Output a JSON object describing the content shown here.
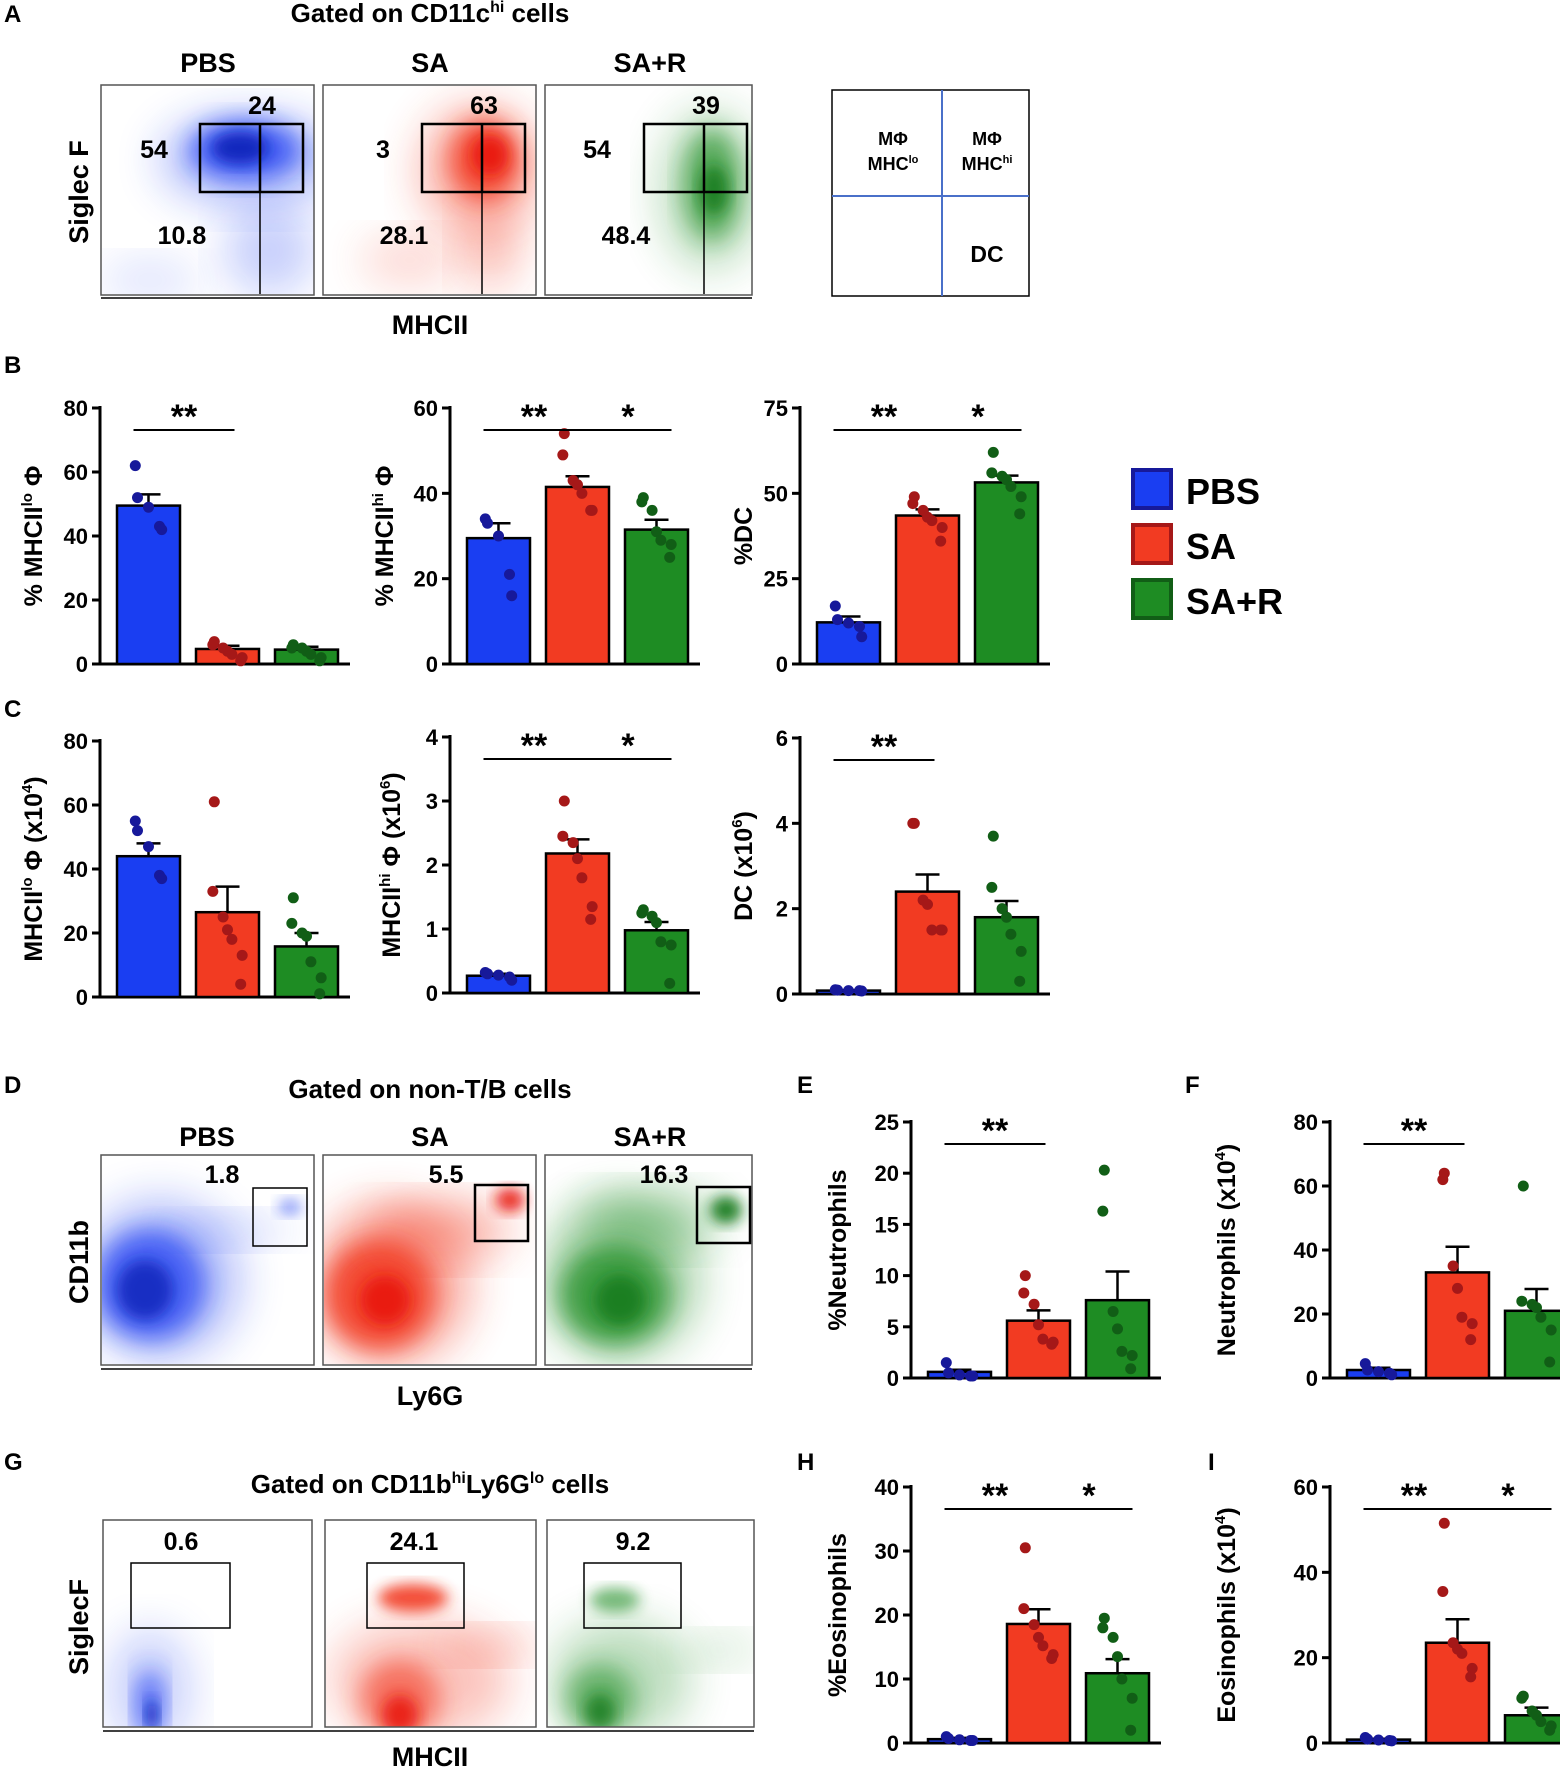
{
  "colors": {
    "pbs": "#1a3ef2",
    "sa": "#f23b22",
    "sar": "#1e8c23",
    "pbs_dot": "#17199a",
    "sa_dot": "#a51818",
    "sar_dot": "#115e16",
    "gate_line": "#4a70c9"
  },
  "panel_letters": [
    "A",
    "B",
    "C",
    "D",
    "E",
    "F",
    "G",
    "H",
    "I"
  ],
  "groups": [
    "PBS",
    "SA",
    "SA+R"
  ],
  "legend": {
    "items": [
      "PBS",
      "SA",
      "SA+R"
    ]
  },
  "panelA": {
    "title": "Gated on CD11c",
    "title_sup": "hi",
    "title_suffix": " cells",
    "ylabel": "Siglec F",
    "xlabel": "MHCII",
    "plots": [
      {
        "label": "PBS",
        "q_tl": "54",
        "q_tr": "24",
        "q_bl": "10.8"
      },
      {
        "label": "SA",
        "q_tl": "3",
        "q_tr": "63",
        "q_bl": "28.1"
      },
      {
        "label": "SA+R",
        "q_tl": "54",
        "q_tr": "39",
        "q_bl": "48.4"
      }
    ],
    "key": {
      "tl_line1": "MΦ",
      "tl_line2": "MHC",
      "tl_sup": "lo",
      "tr_line1": "MΦ",
      "tr_line2": "MHC",
      "tr_sup": "hi",
      "br": "DC"
    }
  },
  "panelD": {
    "title": "Gated on non-T/B cells",
    "ylabel": "CD11b",
    "xlabel": "Ly6G",
    "plots": [
      {
        "label": "PBS",
        "value": "1.8"
      },
      {
        "label": "SA",
        "value": "5.5"
      },
      {
        "label": "SA+R",
        "value": "16.3"
      }
    ]
  },
  "panelG": {
    "title_pre": "Gated on CD11b",
    "title_sup1": "hi",
    "title_mid": "Ly6G",
    "title_sup2": "lo",
    "title_post": " cells",
    "ylabel": "SiglecF",
    "xlabel": "MHCII",
    "plots": [
      {
        "value": "0.6"
      },
      {
        "value": "24.1"
      },
      {
        "value": "9.2"
      }
    ]
  },
  "chart_data": [
    {
      "id": "B1",
      "panel": "B",
      "type": "bar",
      "categories": [
        "PBS",
        "SA",
        "SA+R"
      ],
      "ylabel": "% MHCII",
      "ylabel_sup": "lo",
      "ylabel_post": " Φ",
      "ylim": [
        0,
        80
      ],
      "ticks": [
        0,
        20,
        40,
        60,
        80
      ],
      "means": [
        49.5,
        4.7,
        4.5
      ],
      "sem": [
        3.5,
        1.0,
        0.9
      ],
      "points": [
        [
          62,
          52,
          49,
          43,
          42
        ],
        [
          7,
          6,
          5,
          4,
          3,
          2,
          1
        ],
        [
          6,
          5,
          5,
          4,
          3,
          2,
          1
        ]
      ],
      "sig": [
        {
          "from": 0,
          "to": 1,
          "label": "**"
        }
      ]
    },
    {
      "id": "B2",
      "panel": "B",
      "type": "bar",
      "categories": [
        "PBS",
        "SA",
        "SA+R"
      ],
      "ylabel": "% MHCII",
      "ylabel_sup": "hi",
      "ylabel_post": " Φ",
      "ylim": [
        0,
        60
      ],
      "ticks": [
        0,
        20,
        40,
        60
      ],
      "means": [
        29.5,
        41.5,
        31.5
      ],
      "sem": [
        3.5,
        2.5,
        2.3
      ],
      "points": [
        [
          34,
          33,
          30,
          21,
          16
        ],
        [
          54,
          49,
          43,
          42,
          40,
          36,
          36
        ],
        [
          39,
          38,
          36,
          31,
          29,
          28,
          25
        ]
      ],
      "sig": [
        {
          "from": 0,
          "to": 1,
          "label": "**"
        },
        {
          "from": 1,
          "to": 2,
          "label": "*"
        }
      ]
    },
    {
      "id": "B3",
      "panel": "B",
      "type": "bar",
      "categories": [
        "PBS",
        "SA",
        "SA+R"
      ],
      "ylabel": "%DC",
      "ylim": [
        0,
        75
      ],
      "ticks": [
        0,
        25,
        50,
        75
      ],
      "means": [
        12.2,
        43.5,
        53.2
      ],
      "sem": [
        1.7,
        1.8,
        2.0
      ],
      "points": [
        [
          17,
          13,
          12,
          11,
          8
        ],
        [
          49,
          47,
          45,
          43,
          42,
          40,
          36
        ],
        [
          62,
          56,
          55,
          54,
          52,
          49,
          44
        ]
      ],
      "sig": [
        {
          "from": 0,
          "to": 1,
          "label": "**"
        },
        {
          "from": 1,
          "to": 2,
          "label": "*"
        }
      ]
    },
    {
      "id": "C1",
      "panel": "C",
      "type": "bar",
      "categories": [
        "PBS",
        "SA",
        "SA+R"
      ],
      "ylabel": "MHCII",
      "ylabel_sup": "lo",
      "ylabel_post": " Φ (x10",
      "ylabel_sup2": "4",
      "ylabel_end": ")",
      "ylim": [
        0,
        80
      ],
      "ticks": [
        0,
        20,
        40,
        60,
        80
      ],
      "means": [
        44,
        26.5,
        15.8
      ],
      "sem": [
        4.0,
        8.0,
        4.2
      ],
      "points": [
        [
          55,
          52,
          47,
          38,
          37
        ],
        [
          61,
          33,
          25,
          21,
          18,
          13,
          4
        ],
        [
          31,
          23,
          20,
          19,
          11,
          6,
          1
        ]
      ],
      "sig": []
    },
    {
      "id": "C2",
      "panel": "C",
      "type": "bar",
      "categories": [
        "PBS",
        "SA",
        "SA+R"
      ],
      "ylabel": "MHCII",
      "ylabel_sup": "hi",
      "ylabel_post": " Φ (x10",
      "ylabel_sup2": "6",
      "ylabel_end": ")",
      "ylim": [
        0,
        4
      ],
      "ticks": [
        0,
        1,
        2,
        3,
        4
      ],
      "means": [
        0.27,
        2.18,
        0.98
      ],
      "sem": [
        0.03,
        0.22,
        0.13
      ],
      "points": [
        [
          0.32,
          0.3,
          0.28,
          0.25,
          0.2
        ],
        [
          3.0,
          2.45,
          2.35,
          2.1,
          1.8,
          1.35,
          1.15
        ],
        [
          1.3,
          1.25,
          1.2,
          1.1,
          0.8,
          0.75,
          0.15
        ]
      ],
      "sig": [
        {
          "from": 0,
          "to": 1,
          "label": "**"
        },
        {
          "from": 1,
          "to": 2,
          "label": "*"
        }
      ]
    },
    {
      "id": "C3",
      "panel": "C",
      "type": "bar",
      "categories": [
        "PBS",
        "SA",
        "SA+R"
      ],
      "ylabel": "DC (x10",
      "ylabel_sup2": "6",
      "ylabel_end": ")",
      "ylim": [
        0,
        6
      ],
      "ticks": [
        0,
        2,
        4,
        6
      ],
      "means": [
        0.08,
        2.4,
        1.8
      ],
      "sem": [
        0.01,
        0.4,
        0.38
      ],
      "points": [
        [
          0.1,
          0.09,
          0.08,
          0.08,
          0.07
        ],
        [
          4.0,
          4.0,
          2.2,
          2.1,
          1.5,
          1.5,
          1.5
        ],
        [
          3.7,
          2.5,
          2.0,
          1.8,
          1.4,
          1.0,
          0.3
        ]
      ],
      "sig": [
        {
          "from": 0,
          "to": 1,
          "label": "**"
        }
      ]
    },
    {
      "id": "E",
      "panel": "E",
      "type": "bar",
      "categories": [
        "PBS",
        "SA",
        "SA+R"
      ],
      "ylabel": "%Neutrophils",
      "ylim": [
        0,
        25
      ],
      "ticks": [
        0,
        5,
        10,
        15,
        20,
        25
      ],
      "means": [
        0.6,
        5.6,
        7.6
      ],
      "sem": [
        0.2,
        1.0,
        2.8
      ],
      "points": [
        [
          1.5,
          0.5,
          0.3,
          0.2,
          0.2
        ],
        [
          10,
          8.3,
          7.2,
          5.2,
          3.8,
          3.5,
          3.3
        ],
        [
          20.3,
          16.3,
          6.5,
          4.8,
          2.6,
          2.2,
          0.9
        ]
      ],
      "sig": [
        {
          "from": 0,
          "to": 1,
          "label": "**"
        }
      ]
    },
    {
      "id": "F",
      "panel": "F",
      "type": "bar",
      "categories": [
        "PBS",
        "SA",
        "SA+R"
      ],
      "ylabel": "Neutrophils (x10",
      "ylabel_sup2": "4",
      "ylabel_end": ")",
      "ylim": [
        0,
        80
      ],
      "ticks": [
        0,
        20,
        40,
        60,
        80
      ],
      "means": [
        2.5,
        33,
        21
      ],
      "sem": [
        0.7,
        8.0,
        6.8
      ],
      "points": [
        [
          4.5,
          2.5,
          2,
          1.5,
          1
        ],
        [
          64,
          62,
          35,
          28,
          19,
          17,
          12
        ],
        [
          60,
          24,
          23,
          22,
          19,
          15,
          5
        ]
      ],
      "sig": [
        {
          "from": 0,
          "to": 1,
          "label": "**"
        }
      ]
    },
    {
      "id": "H",
      "panel": "H",
      "type": "bar",
      "categories": [
        "PBS",
        "SA",
        "SA+R"
      ],
      "ylabel": "%Eosinophils",
      "ylim": [
        0,
        40
      ],
      "ticks": [
        0,
        10,
        20,
        30,
        40
      ],
      "means": [
        0.6,
        18.6,
        10.9
      ],
      "sem": [
        0.2,
        2.3,
        2.2
      ],
      "points": [
        [
          1.0,
          0.7,
          0.5,
          0.4,
          0.4
        ],
        [
          30.5,
          21,
          18.5,
          16.5,
          15.2,
          13.8,
          13.2
        ],
        [
          19.5,
          18,
          16.5,
          13.5,
          10,
          7,
          2
        ]
      ],
      "sig": [
        {
          "from": 0,
          "to": 1,
          "label": "**"
        },
        {
          "from": 1,
          "to": 2,
          "label": "*"
        }
      ]
    },
    {
      "id": "I",
      "panel": "I",
      "type": "bar",
      "categories": [
        "PBS",
        "SA",
        "SA+R"
      ],
      "ylabel": "Eosinophils (x10",
      "ylabel_sup2": "4",
      "ylabel_end": ")",
      "ylim": [
        0,
        60
      ],
      "ticks": [
        0,
        20,
        40,
        60
      ],
      "means": [
        0.8,
        23.5,
        6.5
      ],
      "sem": [
        0.2,
        5.5,
        1.8
      ],
      "points": [
        [
          1.3,
          0.9,
          0.7,
          0.6,
          0.5
        ],
        [
          51.5,
          35.5,
          23.5,
          22,
          21,
          17.5,
          15.5
        ],
        [
          11,
          10.5,
          7.5,
          6.5,
          5,
          4,
          3
        ]
      ],
      "sig": [
        {
          "from": 0,
          "to": 1,
          "label": "**"
        },
        {
          "from": 1,
          "to": 2,
          "label": "*"
        }
      ]
    }
  ]
}
